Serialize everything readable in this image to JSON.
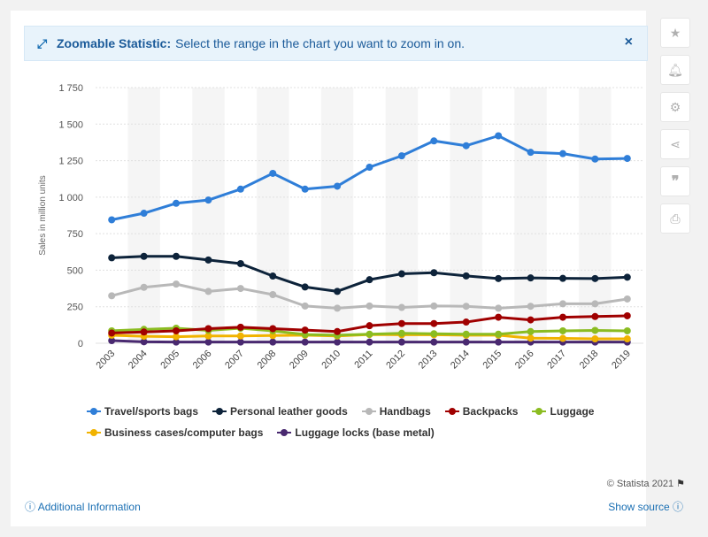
{
  "banner": {
    "title": "Zoomable Statistic:",
    "text": "Select the range in the chart you want to zoom in on.",
    "close_label": "×"
  },
  "sidebar": {
    "icons": [
      "star-icon",
      "bell-icon",
      "gear-icon",
      "share-icon",
      "quote-icon",
      "print-icon"
    ]
  },
  "footer": {
    "credit": "© Statista 2021",
    "additional_info": "Additional Information",
    "show_source": "Show source"
  },
  "chart_data": {
    "type": "line",
    "title": "",
    "xlabel": "",
    "ylabel": "Sales in million units",
    "ylim": [
      0,
      1750
    ],
    "yticks": [
      0,
      250,
      500,
      750,
      1000,
      1250,
      1500,
      1750
    ],
    "ytick_labels": [
      "0",
      "250",
      "500",
      "750",
      "1 000",
      "1 250",
      "1 500",
      "1 750"
    ],
    "grid": true,
    "legend_position": "bottom",
    "categories": [
      "2003",
      "2004",
      "2005",
      "2006",
      "2007",
      "2008",
      "2009",
      "2010",
      "2011",
      "2012",
      "2013",
      "2014",
      "2015",
      "2016",
      "2017",
      "2018",
      "2019"
    ],
    "series": [
      {
        "name": "Travel/sports bags",
        "color": "#2f7ed8",
        "values": [
          845,
          890,
          958,
          980,
          1055,
          1163,
          1055,
          1075,
          1205,
          1283,
          1385,
          1352,
          1420,
          1307,
          1298,
          1261,
          1265
        ]
      },
      {
        "name": "Personal leather goods",
        "color": "#0d233a",
        "values": [
          585,
          595,
          595,
          570,
          545,
          460,
          385,
          355,
          435,
          475,
          483,
          461,
          443,
          447,
          444,
          443,
          452
        ]
      },
      {
        "name": "Handbags",
        "color": "#b8b8b8",
        "values": [
          325,
          383,
          405,
          355,
          375,
          333,
          255,
          240,
          255,
          245,
          255,
          253,
          240,
          253,
          270,
          270,
          303
        ]
      },
      {
        "name": "Backpacks",
        "color": "#a00000",
        "values": [
          70,
          77,
          85,
          100,
          110,
          100,
          90,
          80,
          120,
          135,
          135,
          145,
          178,
          160,
          178,
          183,
          188
        ]
      },
      {
        "name": "Luggage",
        "color": "#8bbc21",
        "values": [
          85,
          95,
          103,
          88,
          103,
          85,
          60,
          55,
          62,
          68,
          65,
          62,
          62,
          80,
          85,
          88,
          85
        ]
      },
      {
        "name": "Business cases/computer bags",
        "color": "#f1b300",
        "values": [
          55,
          48,
          45,
          50,
          50,
          53,
          55,
          50,
          60,
          58,
          58,
          55,
          55,
          35,
          33,
          30,
          30
        ]
      },
      {
        "name": "Luggage locks (base metal)",
        "color": "#492970",
        "values": [
          18,
          10,
          8,
          8,
          8,
          8,
          8,
          8,
          8,
          8,
          8,
          8,
          8,
          8,
          8,
          8,
          8
        ]
      }
    ]
  }
}
